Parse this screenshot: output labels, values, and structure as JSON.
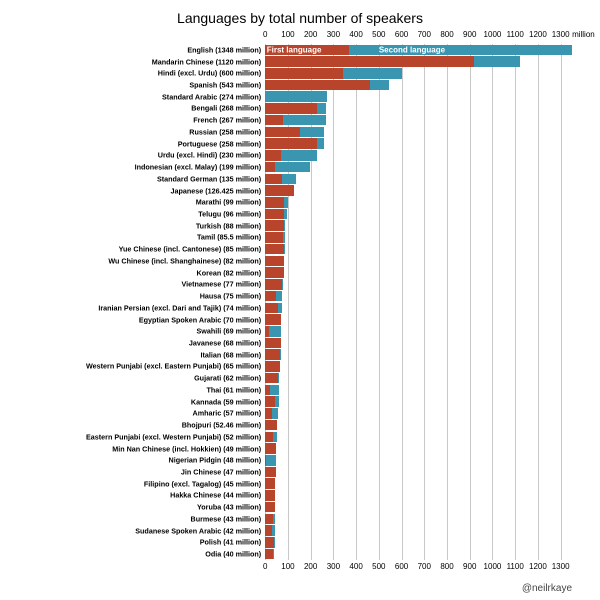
{
  "title": "Languages by total number of speakers",
  "credit": "@neilrkaye",
  "chart": {
    "type": "bar",
    "xlim": [
      0,
      1350
    ],
    "xtick_step": 100,
    "xtick_max_label": 1300,
    "unit_label": "million",
    "grid_color": "#c8c8c8",
    "background_color": "#ffffff",
    "first_lang_color": "#b9442c",
    "second_lang_color": "#3a95b1",
    "tick_fontsize": 8,
    "label_fontsize": 7.2,
    "title_fontsize": 14,
    "legend": {
      "first_label": "First language",
      "second_label": "Second language"
    },
    "languages": [
      {
        "name": "English",
        "total": 1348,
        "first": 370
      },
      {
        "name": "Mandarin Chinese",
        "total": 1120,
        "first": 921
      },
      {
        "name": "Hindi (excl. Urdu)",
        "total": 600,
        "first": 342
      },
      {
        "name": "Spanish",
        "total": 543,
        "first": 463
      },
      {
        "name": "Standard Arabic",
        "total": 274,
        "first": 0
      },
      {
        "name": "Bengali",
        "total": 268,
        "first": 228
      },
      {
        "name": "French",
        "total": 267,
        "first": 80
      },
      {
        "name": "Russian",
        "total": 258,
        "first": 154
      },
      {
        "name": "Portuguese",
        "total": 258,
        "first": 228
      },
      {
        "name": "Urdu (excl. Hindi)",
        "total": 230,
        "first": 69
      },
      {
        "name": "Indonesian (excl. Malay)",
        "total": 199,
        "first": 43
      },
      {
        "name": "Standard German",
        "total": 135,
        "first": 76
      },
      {
        "name": "Japanese",
        "total": 126.425,
        "first": 126
      },
      {
        "name": "Marathi",
        "total": 99,
        "first": 83
      },
      {
        "name": "Telugu",
        "total": 96,
        "first": 83
      },
      {
        "name": "Turkish",
        "total": 88,
        "first": 82
      },
      {
        "name": "Tamil",
        "total": 85.5,
        "first": 78
      },
      {
        "name": "Yue Chinese (incl. Cantonese)",
        "total": 85,
        "first": 84
      },
      {
        "name": "Wu Chinese (incl. Shanghainese)",
        "total": 82,
        "first": 82
      },
      {
        "name": "Korean",
        "total": 82,
        "first": 82
      },
      {
        "name": "Vietnamese",
        "total": 77,
        "first": 76
      },
      {
        "name": "Hausa",
        "total": 75,
        "first": 48
      },
      {
        "name": "Iranian Persian (excl. Dari and Tajik)",
        "total": 74,
        "first": 57
      },
      {
        "name": "Egyptian Spoken Arabic",
        "total": 70,
        "first": 70
      },
      {
        "name": "Swahili",
        "total": 69,
        "first": 16
      },
      {
        "name": "Javanese",
        "total": 68,
        "first": 68
      },
      {
        "name": "Italian",
        "total": 68,
        "first": 65
      },
      {
        "name": "Western Punjabi (excl. Eastern Punjabi)",
        "total": 65,
        "first": 65
      },
      {
        "name": "Gujarati",
        "total": 62,
        "first": 57
      },
      {
        "name": "Thai",
        "total": 61,
        "first": 21
      },
      {
        "name": "Kannada",
        "total": 59,
        "first": 44
      },
      {
        "name": "Amharic",
        "total": 57,
        "first": 32
      },
      {
        "name": "Bhojpuri",
        "total": 52.46,
        "first": 52
      },
      {
        "name": "Eastern Punjabi (excl. Western Punjabi)",
        "total": 52,
        "first": 35
      },
      {
        "name": "Min Nan Chinese (incl. Hokkien)",
        "total": 49,
        "first": 49
      },
      {
        "name": "Nigerian Pidgin",
        "total": 48,
        "first": 5
      },
      {
        "name": "Jin Chinese",
        "total": 47,
        "first": 47
      },
      {
        "name": "Filipino (excl. Tagalog)",
        "total": 45,
        "first": 45
      },
      {
        "name": "Hakka Chinese",
        "total": 44,
        "first": 44
      },
      {
        "name": "Yoruba",
        "total": 43,
        "first": 41
      },
      {
        "name": "Burmese",
        "total": 43,
        "first": 33
      },
      {
        "name": "Sudanese Spoken Arabic",
        "total": 42,
        "first": 32
      },
      {
        "name": "Polish",
        "total": 41,
        "first": 40
      },
      {
        "name": "Odia",
        "total": 40,
        "first": 35
      }
    ]
  }
}
